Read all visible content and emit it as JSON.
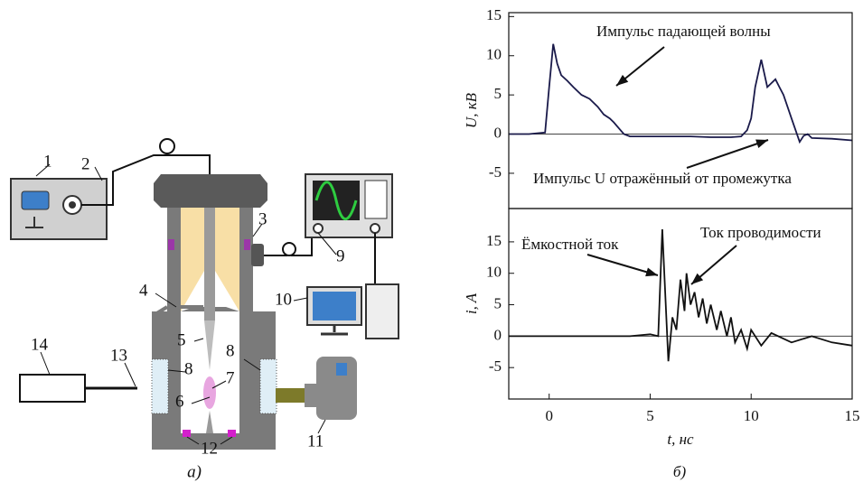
{
  "diagram": {
    "labels": [
      "1",
      "2",
      "3",
      "4",
      "5",
      "6",
      "7",
      "8",
      "8",
      "9",
      "10",
      "11",
      "12",
      "13",
      "14"
    ],
    "caption": "а)"
  },
  "chart_data": [
    {
      "type": "line",
      "ylabel": "U, кВ",
      "xlim": [
        -2,
        15
      ],
      "ylim": [
        -9.5,
        15.5
      ],
      "yticks": [
        -5,
        0,
        5,
        10,
        15
      ],
      "annotations": [
        "Импульс падающей волны",
        "Импульс U отражённый от промежутка"
      ],
      "x": [
        -2,
        -1,
        -0.2,
        0,
        0.2,
        0.4,
        0.6,
        0.9,
        1.2,
        1.6,
        2,
        2.4,
        2.7,
        3,
        3.2,
        3.5,
        3.7,
        4,
        5,
        6,
        7,
        8,
        9,
        9.5,
        9.8,
        10,
        10.2,
        10.5,
        10.8,
        11,
        11.2,
        11.4,
        11.6,
        12,
        12.2,
        12.4,
        12.6,
        12.8,
        13,
        14,
        15
      ],
      "series": [
        {
          "color": "#1a1a4a",
          "values": [
            0,
            0,
            0.2,
            6,
            11.5,
            9,
            7.5,
            6.8,
            6,
            5,
            4.5,
            3.5,
            2.5,
            2,
            1.5,
            0.6,
            0,
            -0.3,
            -0.3,
            -0.3,
            -0.3,
            -0.4,
            -0.4,
            -0.3,
            0.5,
            2,
            6,
            9.5,
            6,
            6.5,
            7,
            6,
            5,
            2,
            0.5,
            -1,
            -0.2,
            0,
            -0.5,
            -0.6,
            -0.8
          ]
        }
      ]
    },
    {
      "type": "line",
      "ylabel": "i, A",
      "xlabel": "t, нс",
      "caption": "б)",
      "xlim": [
        -2,
        15
      ],
      "ylim": [
        -10,
        20.3
      ],
      "yticks": [
        -5,
        0,
        5,
        10,
        15
      ],
      "xticks": [
        0,
        5,
        10,
        15
      ],
      "annotations": [
        "Ёмкостной ток",
        "Ток проводимости"
      ],
      "x": [
        -2,
        -1,
        0,
        1,
        2,
        3,
        4,
        5,
        5.4,
        5.6,
        5.9,
        6.1,
        6.3,
        6.5,
        6.7,
        6.8,
        7,
        7.2,
        7.4,
        7.6,
        7.8,
        8,
        8.3,
        8.5,
        8.8,
        9,
        9.2,
        9.5,
        9.8,
        10,
        10.5,
        11,
        12,
        13,
        14,
        15
      ],
      "series": [
        {
          "color": "#111111",
          "values": [
            0,
            0,
            0,
            0,
            0,
            0,
            0,
            0.3,
            0,
            17,
            -4,
            3,
            1,
            9,
            4,
            10,
            5,
            7,
            3,
            6,
            2,
            5,
            1,
            4,
            0,
            3,
            -1,
            1,
            -2,
            1,
            -1.5,
            0.5,
            -1,
            0,
            -1,
            -1.5
          ]
        }
      ]
    }
  ]
}
